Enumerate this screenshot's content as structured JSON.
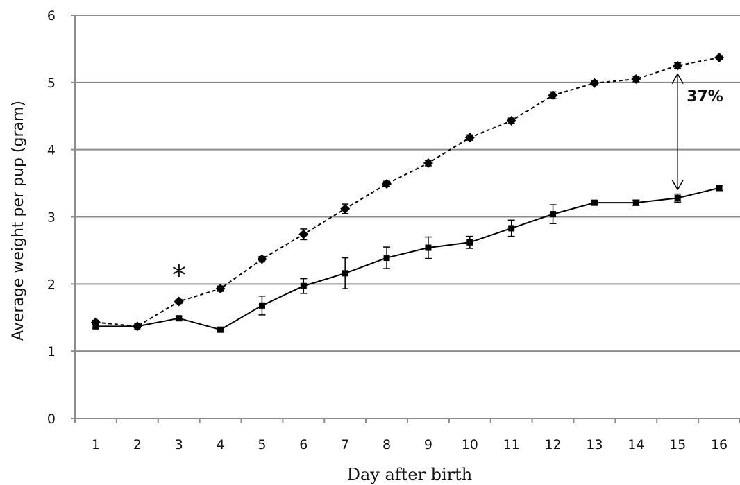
{
  "chart_data": {
    "type": "line",
    "xlabel": "Day after birth",
    "ylabel": "Average weight per pup (gram)",
    "ylim": [
      0,
      6
    ],
    "yticks": [
      "0",
      "1",
      "2",
      "3",
      "4",
      "5",
      "6"
    ],
    "categories": [
      "1",
      "2",
      "3",
      "4",
      "5",
      "6",
      "7",
      "8",
      "9",
      "10",
      "11",
      "12",
      "13",
      "14",
      "15",
      "16"
    ],
    "grid": "horizontal",
    "legend": "none",
    "series": [
      {
        "marker": "diamond",
        "line_style": "dashed",
        "color": "#000000",
        "values": [
          1.43,
          1.37,
          1.74,
          1.93,
          2.37,
          2.74,
          3.12,
          3.49,
          3.8,
          4.18,
          4.43,
          4.81,
          4.99,
          5.05,
          5.25,
          5.37
        ],
        "errors": [
          0.03,
          0.02,
          0.03,
          0.04,
          0.04,
          0.08,
          0.07,
          0.04,
          0.04,
          0.04,
          0.04,
          0.05,
          0.03,
          0.04,
          0.04,
          0.03
        ]
      },
      {
        "marker": "square",
        "line_style": "solid",
        "color": "#000000",
        "values": [
          1.37,
          1.37,
          1.49,
          1.32,
          1.68,
          1.97,
          2.16,
          2.39,
          2.54,
          2.62,
          2.83,
          3.04,
          3.21,
          3.21,
          3.28,
          3.43
        ],
        "errors": [
          0.03,
          0.02,
          0.03,
          0.03,
          0.14,
          0.11,
          0.23,
          0.16,
          0.16,
          0.09,
          0.12,
          0.14,
          0.03,
          0.04,
          0.06,
          0.04
        ]
      }
    ],
    "annotations": [
      {
        "text": "*",
        "category": "3",
        "near": "series-1"
      },
      {
        "text": "37%",
        "category": "15",
        "type": "double-arrow-between-series"
      }
    ]
  }
}
